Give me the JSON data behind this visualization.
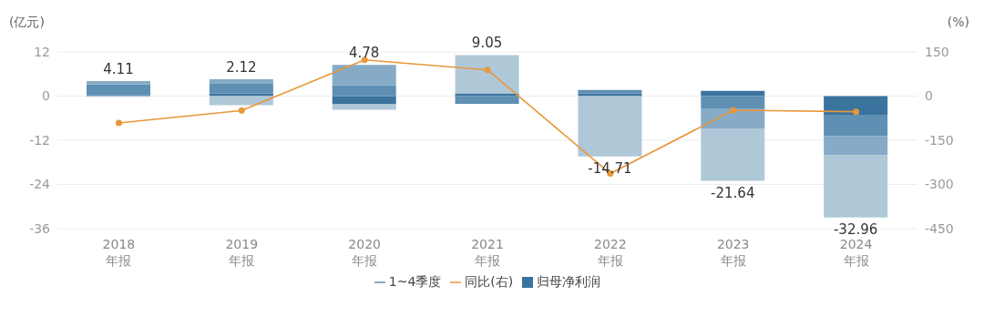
{
  "chart_data": {
    "type": "bar",
    "stacked": true,
    "ylabel": "(亿元)",
    "y2label": "(%)",
    "categories": [
      "2018\n年报",
      "2019\n年报",
      "2020\n年报",
      "2021\n年报",
      "2022\n年报",
      "2023\n年报",
      "2024\n年报"
    ],
    "series": [
      {
        "name": "归母净利润",
        "color": "#3a739e",
        "values": [
          0.2,
          0.7,
          -2.2,
          0.6,
          0.7,
          1.4,
          -5.1
        ]
      },
      {
        "name": "1~4季度",
        "color": "#5f8fb3",
        "values": [
          3.01,
          2.8,
          2.9,
          -2.1,
          1.0,
          -3.5,
          -5.7
        ]
      },
      {
        "color": "#86abc6",
        "values": [
          0.9,
          1.1,
          5.58,
          0.2,
          null,
          -5.3,
          -5.3
        ]
      },
      {
        "color": "#afc8d8",
        "values": [
          null,
          -2.48,
          -1.5,
          10.35,
          -16.41,
          -14.24,
          -16.86
        ]
      },
      {
        "name": "同比(右)",
        "type": "line",
        "axis": "y2",
        "color": "#e8973a",
        "values": [
          -91,
          -49,
          123,
          89,
          -263,
          -48,
          -53
        ]
      }
    ],
    "totals": [
      "4.11",
      "2.12",
      "4.78",
      "9.05",
      "-14.71",
      "-21.64",
      "-32.96"
    ],
    "ylim": [
      -36,
      12
    ],
    "yticks": [
      -36,
      -24,
      -12,
      0,
      12
    ],
    "y2lim": [
      -450,
      150
    ],
    "y2ticks": [
      -450,
      -300,
      -150,
      0,
      150
    ],
    "grid": "y",
    "legend": "bottom",
    "marker": "circle",
    "line_style": "solid"
  }
}
